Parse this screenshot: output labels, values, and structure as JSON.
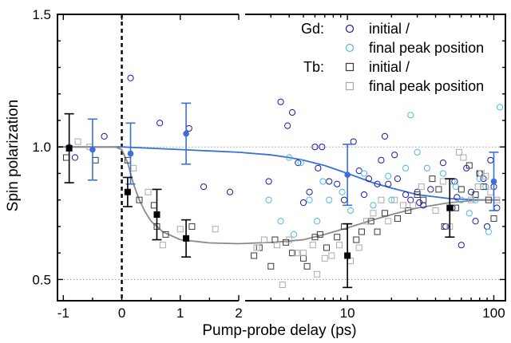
{
  "chart_data": {
    "type": "scatter",
    "xlabel": "Pump-probe delay (ps)",
    "ylabel": "Spin polarization",
    "x_axis_note": "split axis: linear from -1 to 2 ps, logarithmic from 2 to 110 ps",
    "x_linear_range": [
      -1.1,
      2
    ],
    "x_log_range": [
      2,
      120
    ],
    "ylim": [
      0.42,
      1.5
    ],
    "x_tick_labels": [
      "-1",
      "0",
      "1",
      "2",
      "10",
      "100"
    ],
    "y_tick_labels": [
      "0.5",
      "1.0",
      "1.5"
    ],
    "reference_lines": [
      0.5,
      1.0
    ],
    "time_zero_marker": 0,
    "grid": false,
    "legend_placement": "top-right",
    "legend": [
      {
        "group": "Gd:",
        "label": "initial /",
        "marker": "circle",
        "color": "#1a1aa6"
      },
      {
        "group": "",
        "label": "final peak position",
        "marker": "circle",
        "color": "#4fb8e0"
      },
      {
        "group": "Tb:",
        "label": "initial /",
        "marker": "square",
        "color": "#3a3a3a"
      },
      {
        "group": "",
        "label": "final peak position",
        "marker": "square",
        "color": "#aaaaaa"
      }
    ],
    "colors": {
      "gd_initial": "#1a1aa6",
      "gd_final": "#4fb8e0",
      "gd_fit": "#3c6fd8",
      "tb_initial": "#3a3a3a",
      "tb_final": "#aaaaaa",
      "tb_fit": "#8a8a8a",
      "tb_avg": "#000000"
    },
    "series": [
      {
        "name": "Gd: initial /",
        "marker": "open-circle",
        "points": [
          [
            -0.8,
            0.96
          ],
          [
            -0.3,
            1.04
          ],
          [
            0.15,
            1.26
          ],
          [
            0.65,
            1.09
          ],
          [
            1.15,
            1.07
          ],
          [
            1.4,
            0.85
          ],
          [
            1.85,
            0.83
          ],
          [
            2.9,
            0.87
          ],
          [
            3.5,
            1.17
          ],
          [
            3.9,
            1.08
          ],
          [
            4.2,
            1.13
          ],
          [
            4.6,
            0.94
          ],
          [
            5.0,
            0.79
          ],
          [
            5.5,
            0.83
          ],
          [
            6.0,
            1.0
          ],
          [
            6.3,
            0.92
          ],
          [
            6.7,
            1.0
          ],
          [
            7.5,
            0.87
          ],
          [
            8.5,
            0.86
          ],
          [
            9.5,
            0.8
          ],
          [
            11,
            1.02
          ],
          [
            12,
            0.91
          ],
          [
            13,
            0.82
          ],
          [
            14,
            0.88
          ],
          [
            16,
            0.86
          ],
          [
            17,
            0.95
          ],
          [
            18,
            1.04
          ],
          [
            19,
            0.86
          ],
          [
            21,
            0.97
          ],
          [
            22,
            0.88
          ],
          [
            25,
            0.82
          ],
          [
            27,
            0.8
          ],
          [
            30,
            0.83
          ],
          [
            31,
            0.79
          ],
          [
            33,
            0.78
          ],
          [
            37,
            0.84
          ],
          [
            45,
            0.94
          ],
          [
            47,
            0.7
          ],
          [
            52,
            0.77
          ],
          [
            54,
            0.87
          ],
          [
            56,
            0.81
          ],
          [
            60,
            0.63
          ],
          [
            65,
            0.92
          ],
          [
            70,
            0.83
          ],
          [
            75,
            0.72
          ],
          [
            80,
            0.9
          ],
          [
            85,
            0.88
          ],
          [
            90,
            0.7
          ],
          [
            95,
            0.95
          ],
          [
            100,
            0.85
          ],
          [
            105,
            0.77
          ]
        ]
      },
      {
        "name": "final peak position",
        "marker": "open-circle",
        "points": [
          [
            2.9,
            0.8
          ],
          [
            3.5,
            0.72
          ],
          [
            4.0,
            0.96
          ],
          [
            4.3,
            0.67
          ],
          [
            4.8,
            0.94
          ],
          [
            5.5,
            0.8
          ],
          [
            6.2,
            0.72
          ],
          [
            6.8,
            0.87
          ],
          [
            7.5,
            0.8
          ],
          [
            9.2,
            0.83
          ],
          [
            10.5,
            0.76
          ],
          [
            13,
            0.9
          ],
          [
            15,
            0.78
          ],
          [
            19,
            0.89
          ],
          [
            20,
            0.8
          ],
          [
            25,
            0.92
          ],
          [
            27,
            1.12
          ],
          [
            30,
            0.98
          ],
          [
            35,
            0.92
          ],
          [
            45,
            0.9
          ],
          [
            52,
            0.87
          ],
          [
            55,
            0.85
          ],
          [
            60,
            0.8
          ],
          [
            68,
            0.75
          ],
          [
            75,
            0.8
          ],
          [
            80,
            0.88
          ],
          [
            88,
            0.85
          ],
          [
            92,
            0.68
          ],
          [
            110,
            1.15
          ]
        ]
      },
      {
        "name": "Tb: initial /",
        "marker": "open-square",
        "points": [
          [
            -0.95,
            0.96
          ],
          [
            -0.45,
            0.95
          ],
          [
            0.1,
            0.95
          ],
          [
            0.3,
            0.8
          ],
          [
            0.55,
            0.78
          ],
          [
            0.6,
            0.7
          ],
          [
            0.75,
            0.67
          ],
          [
            1.2,
            0.7
          ],
          [
            2.3,
            0.59
          ],
          [
            2.5,
            0.62
          ],
          [
            3.0,
            0.55
          ],
          [
            3.2,
            0.65
          ],
          [
            3.8,
            0.64
          ],
          [
            4.2,
            0.6
          ],
          [
            5.0,
            0.58
          ],
          [
            5.3,
            0.55
          ],
          [
            6.0,
            0.66
          ],
          [
            6.5,
            0.67
          ],
          [
            7.2,
            0.62
          ],
          [
            8.5,
            0.66
          ],
          [
            9.5,
            0.7
          ],
          [
            11.5,
            0.65
          ],
          [
            12.5,
            0.68
          ],
          [
            14.5,
            0.72
          ],
          [
            16,
            0.68
          ],
          [
            18,
            0.75
          ],
          [
            22,
            0.73
          ],
          [
            26,
            0.76
          ],
          [
            30,
            0.82
          ],
          [
            33,
            0.8
          ],
          [
            38,
            0.88
          ],
          [
            42,
            0.84
          ],
          [
            46,
            0.7
          ],
          [
            55,
            0.77
          ],
          [
            60,
            0.84
          ],
          [
            68,
            0.93
          ],
          [
            75,
            0.82
          ],
          [
            80,
            0.9
          ],
          [
            85,
            0.85
          ],
          [
            92,
            0.8
          ],
          [
            100,
            0.73
          ]
        ]
      },
      {
        "name": "final peak position",
        "marker": "open-square",
        "points": [
          [
            -0.75,
            1.02
          ],
          [
            -0.55,
            1.0
          ],
          [
            0.2,
            0.92
          ],
          [
            0.45,
            0.83
          ],
          [
            0.7,
            0.63
          ],
          [
            1.0,
            0.69
          ],
          [
            1.6,
            0.69
          ],
          [
            2.4,
            0.62
          ],
          [
            2.7,
            0.65
          ],
          [
            3.3,
            0.63
          ],
          [
            3.6,
            0.48
          ],
          [
            4.0,
            0.65
          ],
          [
            4.5,
            0.6
          ],
          [
            5.0,
            0.6
          ],
          [
            5.8,
            0.63
          ],
          [
            6.2,
            0.52
          ],
          [
            7.0,
            0.58
          ],
          [
            7.8,
            0.59
          ],
          [
            8.8,
            0.63
          ],
          [
            10.5,
            0.57
          ],
          [
            12,
            0.62
          ],
          [
            13.5,
            0.72
          ],
          [
            15,
            0.75
          ],
          [
            17,
            0.8
          ],
          [
            19,
            0.72
          ],
          [
            21,
            0.8
          ],
          [
            24,
            0.78
          ],
          [
            28,
            0.78
          ],
          [
            32,
            0.85
          ],
          [
            40,
            0.76
          ],
          [
            45,
            0.87
          ],
          [
            50,
            0.7
          ],
          [
            58,
            0.98
          ],
          [
            62,
            0.96
          ],
          [
            70,
            0.8
          ],
          [
            78,
            0.85
          ],
          [
            82,
            0.9
          ],
          [
            88,
            0.89
          ],
          [
            95,
            0.83
          ],
          [
            105,
            0.8
          ]
        ]
      }
    ],
    "averages": [
      {
        "group": "Gd",
        "points": [
          {
            "x": -0.9,
            "y": 1.0,
            "err": 0.0
          },
          {
            "x": -0.5,
            "y": 0.99,
            "err": 0.115
          },
          {
            "x": 0.15,
            "y": 0.975,
            "err": 0.115
          },
          {
            "x": 1.1,
            "y": 1.05,
            "err": 0.115
          },
          {
            "x": 10,
            "y": 0.895,
            "err": 0.115
          },
          {
            "x": 100,
            "y": 0.87,
            "err": 0.11
          }
        ]
      },
      {
        "group": "Tb",
        "points": [
          {
            "x": -0.9,
            "y": 0.995,
            "err": 0.13
          },
          {
            "x": 0.1,
            "y": 0.83,
            "err": 0.055
          },
          {
            "x": 0.6,
            "y": 0.745,
            "err": 0.095
          },
          {
            "x": 1.1,
            "y": 0.655,
            "err": 0.07
          },
          {
            "x": 10,
            "y": 0.59,
            "err": 0.12
          },
          {
            "x": 50,
            "y": 0.77,
            "err": 0.11
          }
        ]
      }
    ],
    "fits": [
      {
        "group": "Gd",
        "points": [
          [
            -1.1,
            1.0
          ],
          [
            0.0,
            1.0
          ],
          [
            0.5,
            0.995
          ],
          [
            1.0,
            0.99
          ],
          [
            1.5,
            0.985
          ],
          [
            2.0,
            0.98
          ],
          [
            3.0,
            0.97
          ],
          [
            4.0,
            0.96
          ],
          [
            5.0,
            0.95
          ],
          [
            7.0,
            0.93
          ],
          [
            10,
            0.9
          ],
          [
            15,
            0.865
          ],
          [
            20,
            0.845
          ],
          [
            30,
            0.82
          ],
          [
            50,
            0.805
          ],
          [
            80,
            0.8
          ],
          [
            110,
            0.8
          ]
        ]
      },
      {
        "group": "Tb",
        "points": [
          [
            -1.1,
            1.0
          ],
          [
            -0.1,
            0.999
          ],
          [
            0.0,
            0.99
          ],
          [
            0.1,
            0.94
          ],
          [
            0.2,
            0.86
          ],
          [
            0.3,
            0.8
          ],
          [
            0.4,
            0.755
          ],
          [
            0.5,
            0.72
          ],
          [
            0.7,
            0.68
          ],
          [
            1.0,
            0.65
          ],
          [
            1.5,
            0.638
          ],
          [
            2.0,
            0.635
          ],
          [
            3.0,
            0.64
          ],
          [
            4.0,
            0.645
          ],
          [
            5.0,
            0.65
          ],
          [
            7.0,
            0.67
          ],
          [
            10,
            0.695
          ],
          [
            15,
            0.725
          ],
          [
            20,
            0.745
          ],
          [
            30,
            0.77
          ],
          [
            50,
            0.79
          ],
          [
            80,
            0.8
          ],
          [
            110,
            0.8
          ]
        ]
      }
    ]
  }
}
